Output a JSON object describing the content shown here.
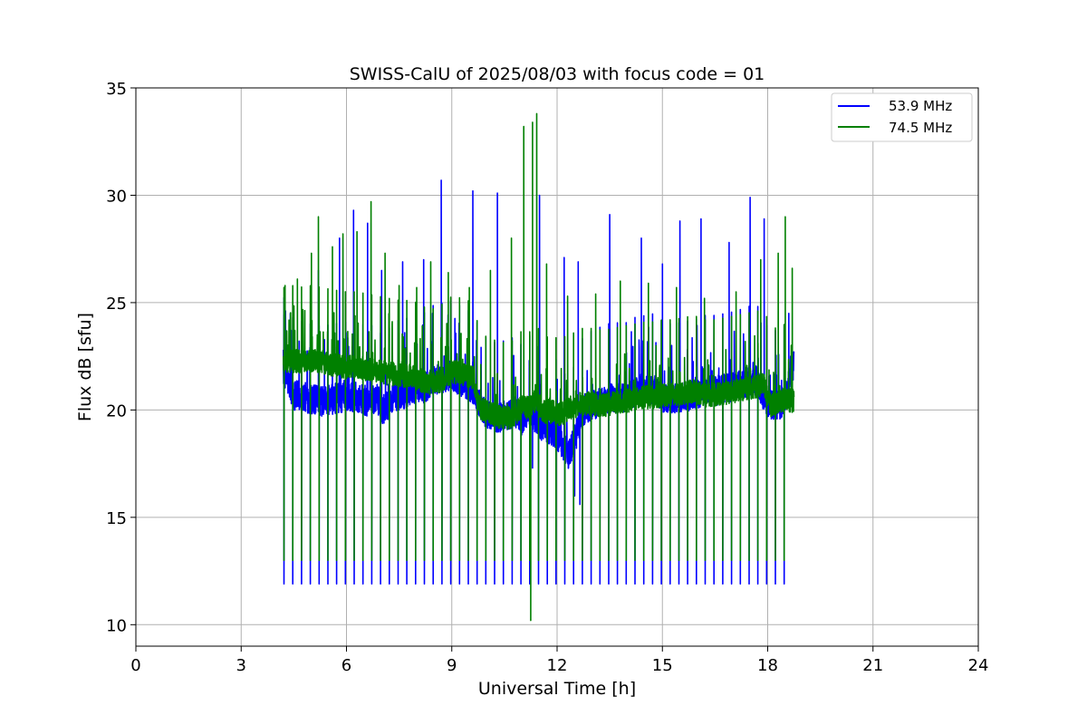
{
  "chart_data": {
    "type": "line",
    "title": "SWISS-CalU of 2025/08/03 with focus code = 01",
    "xlabel": "Universal Time [h]",
    "ylabel": "Flux dB [sfu]",
    "xlim": [
      0,
      24
    ],
    "ylim": [
      9,
      35
    ],
    "xticks": [
      0,
      3,
      6,
      9,
      12,
      15,
      18,
      21,
      24
    ],
    "yticks": [
      10,
      15,
      20,
      25,
      30,
      35
    ],
    "x_tick_labels": [
      "0",
      "3",
      "6",
      "9",
      "12",
      "15",
      "18",
      "21",
      "24"
    ],
    "y_tick_labels": [
      "10",
      "15",
      "20",
      "25",
      "30",
      "35"
    ],
    "grid": true,
    "legend_position": "top-right",
    "series": [
      {
        "name": "53.9 MHz",
        "color": "#0000ff",
        "x": [
          4.2,
          4.5,
          4.8,
          5.0,
          5.3,
          5.6,
          6.0,
          6.3,
          6.6,
          6.9,
          7.0,
          7.2,
          7.5,
          7.8,
          8.0,
          8.2,
          8.5,
          8.8,
          9.0,
          9.3,
          9.6,
          9.8,
          10.0,
          10.3,
          10.6,
          10.8,
          11.0,
          11.2,
          11.4,
          11.6,
          11.9,
          12.1,
          12.3,
          12.5,
          12.7,
          13.0,
          13.3,
          13.6,
          13.9,
          14.2,
          14.5,
          14.8,
          15.0,
          15.3,
          15.6,
          15.9,
          16.2,
          16.5,
          16.8,
          17.1,
          17.4,
          17.7,
          17.9,
          18.1,
          18.3,
          18.5,
          18.75
        ],
        "y": [
          21.8,
          20.7,
          20.6,
          20.5,
          20.4,
          20.5,
          20.6,
          20.6,
          20.4,
          20.5,
          19.9,
          20.3,
          20.7,
          20.8,
          21.1,
          21.0,
          21.4,
          21.5,
          21.6,
          21.3,
          21.0,
          20.3,
          19.8,
          19.6,
          19.8,
          19.9,
          19.5,
          20.0,
          19.6,
          19.2,
          19.0,
          18.6,
          17.9,
          18.6,
          19.8,
          20.2,
          20.4,
          20.6,
          20.5,
          20.8,
          20.9,
          21.0,
          20.6,
          20.5,
          20.6,
          20.7,
          20.9,
          20.9,
          21.0,
          21.1,
          21.3,
          21.4,
          20.6,
          20.2,
          20.2,
          20.5,
          22.2
        ]
      },
      {
        "name": "74.5 MHz",
        "color": "#008000",
        "x": [
          4.2,
          4.5,
          4.8,
          5.0,
          5.3,
          5.6,
          6.0,
          6.3,
          6.6,
          6.9,
          7.2,
          7.5,
          7.8,
          8.0,
          8.2,
          8.5,
          8.8,
          9.0,
          9.3,
          9.6,
          9.8,
          10.0,
          10.3,
          10.6,
          10.8,
          11.0,
          11.2,
          11.4,
          11.6,
          11.9,
          12.1,
          12.3,
          12.5,
          12.7,
          13.0,
          13.3,
          13.6,
          13.9,
          14.2,
          14.5,
          14.8,
          15.0,
          15.3,
          15.6,
          15.9,
          16.2,
          16.5,
          16.8,
          17.1,
          17.4,
          17.7,
          17.9,
          18.1,
          18.3,
          18.5,
          18.75
        ],
        "y": [
          22.2,
          22.3,
          22.2,
          22.3,
          22.2,
          22.1,
          22.0,
          22.0,
          21.9,
          21.8,
          21.7,
          21.6,
          21.6,
          21.5,
          21.3,
          21.2,
          21.5,
          21.8,
          21.7,
          21.5,
          20.1,
          19.9,
          19.7,
          19.6,
          19.8,
          20.2,
          20.1,
          20.5,
          19.9,
          19.9,
          19.8,
          20.0,
          20.1,
          20.3,
          20.3,
          20.2,
          20.3,
          20.4,
          20.5,
          20.6,
          20.6,
          20.7,
          20.7,
          20.8,
          20.9,
          20.7,
          20.7,
          20.8,
          20.9,
          21.0,
          21.1,
          21.2,
          20.2,
          20.4,
          20.5,
          20.4
        ]
      }
    ],
    "calibration_dips": {
      "x": [
        4.22,
        4.47,
        4.72,
        4.97,
        5.22,
        5.47,
        5.72,
        5.97,
        6.22,
        6.47,
        6.72,
        6.97,
        7.22,
        7.47,
        7.72,
        7.97,
        8.22,
        8.47,
        8.72,
        8.97,
        9.22,
        9.47,
        9.72,
        9.97,
        10.22,
        10.47,
        10.72,
        10.97,
        11.22,
        11.47,
        11.72,
        11.97,
        12.22,
        12.47,
        12.72,
        12.97,
        13.22,
        13.47,
        13.72,
        13.97,
        14.22,
        14.47,
        14.72,
        14.97,
        15.22,
        15.47,
        15.72,
        15.97,
        16.22,
        16.47,
        16.72,
        16.97,
        17.22,
        17.47,
        17.72,
        17.97,
        18.22,
        18.47
      ],
      "y_54": 11.9,
      "y_75": 13.0
    },
    "peaks_54": {
      "x": [
        4.4,
        5.2,
        5.8,
        6.2,
        6.6,
        7.0,
        7.6,
        8.2,
        8.7,
        9.6,
        10.3,
        11.5,
        12.2,
        12.6,
        13.5,
        14.4,
        15.0,
        15.5,
        16.1,
        16.9,
        17.5,
        17.9,
        18.6
      ],
      "y": [
        24.5,
        26.5,
        28.0,
        29.3,
        28.7,
        26.5,
        26.9,
        27.0,
        30.7,
        30.2,
        30.1,
        30.0,
        27.1,
        26.9,
        29.1,
        28.0,
        26.8,
        28.8,
        28.9,
        27.8,
        29.9,
        28.9,
        24.5
      ]
    },
    "peaks_75": {
      "x": [
        4.25,
        4.6,
        5.0,
        5.2,
        5.6,
        5.9,
        6.3,
        6.7,
        7.1,
        7.5,
        8.0,
        8.4,
        8.9,
        9.5,
        10.1,
        10.7,
        11.05,
        11.3,
        11.42,
        11.7,
        12.3,
        13.1,
        13.8,
        14.6,
        15.4,
        16.2,
        17.1,
        17.8,
        18.3,
        18.5,
        18.7
      ],
      "y": [
        25.8,
        26.1,
        27.3,
        29.0,
        27.6,
        28.2,
        28.3,
        29.7,
        27.3,
        25.8,
        25.7,
        26.9,
        26.4,
        25.7,
        26.5,
        28.0,
        33.2,
        33.4,
        33.8,
        26.8,
        25.3,
        25.4,
        26.0,
        25.9,
        25.7,
        25.2,
        25.5,
        27.0,
        27.3,
        29.0,
        26.6
      ]
    },
    "extreme_low": {
      "x_54": [
        11.3,
        12.5,
        12.65
      ],
      "y_54": [
        17.3,
        16.0,
        15.6
      ],
      "x_75": 11.25,
      "y_75": 10.2
    }
  }
}
